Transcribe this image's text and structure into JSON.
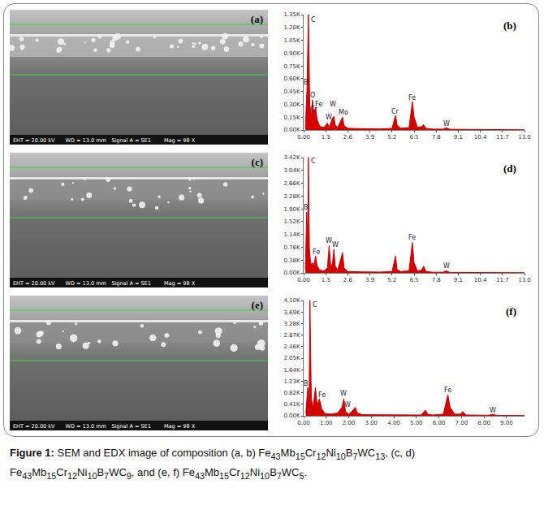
{
  "sem_images": [
    {
      "label": "(a)",
      "info": [
        "EHT = 20.00 kV",
        "WD = 13.0 mm",
        "Signal A = SE1",
        "Mag = 98 X"
      ]
    },
    {
      "label": "(c)",
      "info": [
        "EHT = 20.00 kV",
        "WD = 13.0 mm",
        "Signal A = SE1",
        "Mag = 98 X"
      ]
    },
    {
      "label": "(e)",
      "info": [
        "EHT = 20.00 kV",
        "WD = 13.0 mm",
        "Signal A = SE1",
        "Mag = 98 X"
      ]
    }
  ],
  "chart_data": [
    {
      "type": "area",
      "label": "(b)",
      "color": "#d40000",
      "grid": false,
      "x": [
        0.1,
        0.2,
        0.28,
        0.36,
        0.45,
        0.52,
        0.6,
        0.7,
        0.8,
        0.95,
        1.2,
        1.4,
        1.5,
        1.7,
        1.78,
        1.86,
        2.0,
        2.2,
        2.29,
        2.38,
        2.6,
        3.5,
        4.5,
        5.2,
        5.32,
        5.41,
        5.5,
        5.7,
        6.2,
        6.3,
        6.4,
        6.5,
        6.7,
        6.95,
        7.06,
        7.2,
        7.6,
        8.2,
        8.4,
        8.6,
        9.5,
        11,
        13
      ],
      "values": [
        20,
        500,
        1350,
        300,
        150,
        350,
        200,
        260,
        120,
        40,
        30,
        80,
        30,
        140,
        160,
        60,
        30,
        110,
        150,
        50,
        20,
        15,
        12,
        20,
        100,
        170,
        60,
        20,
        25,
        180,
        330,
        150,
        30,
        40,
        60,
        20,
        10,
        10,
        25,
        8,
        6,
        4,
        2
      ],
      "xlim": [
        0,
        13
      ],
      "xticks": [
        {
          "value": 0,
          "label": "0.00"
        },
        1.3,
        2.6,
        3.9,
        5.2,
        6.5,
        7.8,
        9.1,
        10.4,
        11.7,
        {
          "value": 13,
          "label": "13.0"
        }
      ],
      "ylim": [
        0,
        1350
      ],
      "yticks": [
        {
          "value": 0,
          "label": "0.00K"
        },
        {
          "value": 150,
          "label": "0.15K"
        },
        {
          "value": 300,
          "label": "0.30K"
        },
        {
          "value": 450,
          "label": "0.45K"
        },
        {
          "value": 600,
          "label": "0.60K"
        },
        {
          "value": 750,
          "label": "0.75K"
        },
        {
          "value": 900,
          "label": "0.90K"
        },
        {
          "value": 1050,
          "label": "1.05K"
        },
        {
          "value": 1200,
          "label": "1.20K"
        },
        {
          "value": 1350,
          "label": "1.35K"
        }
      ],
      "annotations": [
        {
          "text": "C",
          "x": 0.55,
          "y": 1290
        },
        {
          "text": "B",
          "x": 0.15,
          "y": 560
        },
        {
          "text": "O",
          "x": 0.52,
          "y": 400
        },
        {
          "text": "Fe",
          "x": 0.9,
          "y": 300
        },
        {
          "text": "Cr",
          "x": 0.6,
          "y": 240
        },
        {
          "text": "W",
          "x": 1.72,
          "y": 300
        },
        {
          "text": "W",
          "x": 1.5,
          "y": 150
        },
        {
          "text": "Mo",
          "x": 2.35,
          "y": 200
        },
        {
          "text": "Cr",
          "x": 5.41,
          "y": 215
        },
        {
          "text": "Fe",
          "x": 6.4,
          "y": 375
        },
        {
          "text": "W",
          "x": 8.4,
          "y": 70
        }
      ]
    },
    {
      "type": "area",
      "label": "(d)",
      "color": "#d40000",
      "grid": false,
      "x": [
        0.1,
        0.18,
        0.24,
        0.28,
        0.34,
        0.42,
        0.52,
        0.6,
        0.7,
        0.8,
        0.95,
        1.2,
        1.4,
        1.5,
        1.6,
        1.7,
        1.78,
        1.86,
        2.0,
        2.2,
        2.29,
        2.38,
        2.6,
        3.5,
        4.5,
        5.2,
        5.32,
        5.41,
        5.5,
        5.7,
        6.2,
        6.3,
        6.4,
        6.5,
        6.7,
        6.95,
        7.06,
        7.2,
        7.6,
        8.2,
        8.4,
        8.6,
        9.5,
        11,
        13
      ],
      "values": [
        100,
        1800,
        900,
        3420,
        700,
        250,
        300,
        200,
        500,
        200,
        80,
        60,
        150,
        800,
        150,
        300,
        700,
        200,
        80,
        400,
        600,
        150,
        40,
        30,
        25,
        40,
        300,
        500,
        100,
        40,
        60,
        500,
        900,
        300,
        60,
        80,
        200,
        40,
        20,
        20,
        60,
        15,
        10,
        8,
        5
      ],
      "xlim": [
        0,
        13
      ],
      "xticks": [
        {
          "value": 0,
          "label": "0.00"
        },
        1.3,
        2.6,
        3.9,
        5.2,
        6.5,
        7.8,
        9.1,
        10.4,
        11.7,
        {
          "value": 13,
          "label": "13.0"
        }
      ],
      "ylim": [
        0,
        3420
      ],
      "yticks": [
        {
          "value": 0,
          "label": "0.00K"
        },
        {
          "value": 380,
          "label": "0.38K"
        },
        {
          "value": 760,
          "label": "0.76K"
        },
        {
          "value": 1140,
          "label": "1.14K"
        },
        {
          "value": 1520,
          "label": "1.52K"
        },
        {
          "value": 1900,
          "label": "1.90K"
        },
        {
          "value": 2280,
          "label": "2.28K"
        },
        {
          "value": 2660,
          "label": "2.66K"
        },
        {
          "value": 3040,
          "label": "3.04K"
        },
        {
          "value": 3420,
          "label": "3.42K"
        }
      ],
      "annotations": [
        {
          "text": "C",
          "x": 0.55,
          "y": 3300
        },
        {
          "text": "B",
          "x": 0.12,
          "y": 1950
        },
        {
          "text": "Fe",
          "x": 0.75,
          "y": 620
        },
        {
          "text": "W",
          "x": 1.5,
          "y": 950
        },
        {
          "text": "W",
          "x": 1.85,
          "y": 820
        },
        {
          "text": "Fe",
          "x": 6.4,
          "y": 1050
        },
        {
          "text": "W",
          "x": 8.4,
          "y": 200
        }
      ]
    },
    {
      "type": "area",
      "label": "(f)",
      "color": "#d40000",
      "grid": false,
      "x": [
        0.1,
        0.18,
        0.24,
        0.28,
        0.34,
        0.42,
        0.52,
        0.6,
        0.7,
        0.8,
        0.95,
        1.2,
        1.5,
        1.7,
        1.78,
        1.86,
        2.0,
        2.2,
        2.29,
        2.38,
        2.6,
        3.5,
        4.5,
        5.2,
        5.32,
        5.41,
        5.5,
        5.7,
        6.2,
        6.3,
        6.4,
        6.5,
        6.7,
        6.95,
        7.06,
        7.2,
        7.6,
        8.2,
        8.4,
        8.6,
        9.8
      ],
      "values": [
        100,
        1000,
        500,
        4100,
        600,
        300,
        1000,
        400,
        600,
        250,
        80,
        60,
        100,
        300,
        600,
        150,
        60,
        200,
        300,
        100,
        40,
        30,
        25,
        30,
        120,
        200,
        60,
        30,
        60,
        400,
        750,
        300,
        60,
        60,
        150,
        30,
        20,
        20,
        50,
        15,
        10
      ],
      "xlim": [
        0,
        9.8
      ],
      "xticks": [
        {
          "value": 0,
          "label": "0.00"
        },
        {
          "value": 1,
          "label": "1.00"
        },
        {
          "value": 2,
          "label": "2.00"
        },
        {
          "value": 3,
          "label": "3.00"
        },
        {
          "value": 4,
          "label": "4.00"
        },
        {
          "value": 5,
          "label": "5.00"
        },
        {
          "value": 6,
          "label": "6.00"
        },
        {
          "value": 7,
          "label": "7.00"
        },
        {
          "value": 8,
          "label": "8.00"
        },
        {
          "value": 9,
          "label": "9.00"
        }
      ],
      "ylim": [
        0,
        4100
      ],
      "yticks": [
        {
          "value": 0,
          "label": "0.00K"
        },
        {
          "value": 410,
          "label": "0.41K"
        },
        {
          "value": 820,
          "label": "0.82K"
        },
        {
          "value": 1230,
          "label": "1.23K"
        },
        {
          "value": 1640,
          "label": "1.64K"
        },
        {
          "value": 2050,
          "label": "2.05K"
        },
        {
          "value": 2460,
          "label": "2.46K"
        },
        {
          "value": 2870,
          "label": "2.87K"
        },
        {
          "value": 3280,
          "label": "3.28K"
        },
        {
          "value": 3690,
          "label": "3.69K"
        },
        {
          "value": 4100,
          "label": "4.10K"
        }
      ],
      "annotations": [
        {
          "text": "C",
          "x": 0.5,
          "y": 3950
        },
        {
          "text": "B",
          "x": 0.1,
          "y": 1150
        },
        {
          "text": "Fe",
          "x": 0.8,
          "y": 750
        },
        {
          "text": "W",
          "x": 1.78,
          "y": 780
        },
        {
          "text": "W",
          "x": 1.95,
          "y": 380
        },
        {
          "text": "Fe",
          "x": 6.4,
          "y": 900
        },
        {
          "text": "W",
          "x": 8.4,
          "y": 200
        }
      ]
    }
  ],
  "caption": {
    "label": "Figure 1:",
    "text": "SEM and EDX image of composition (a, b) Fe43Mb15Cr12Ni10B7WC13, (c, d) Fe43Mb15Cr12Ni10B7WC9, and (e, f) Fe43Mb15Cr12Ni10B7WC5."
  }
}
